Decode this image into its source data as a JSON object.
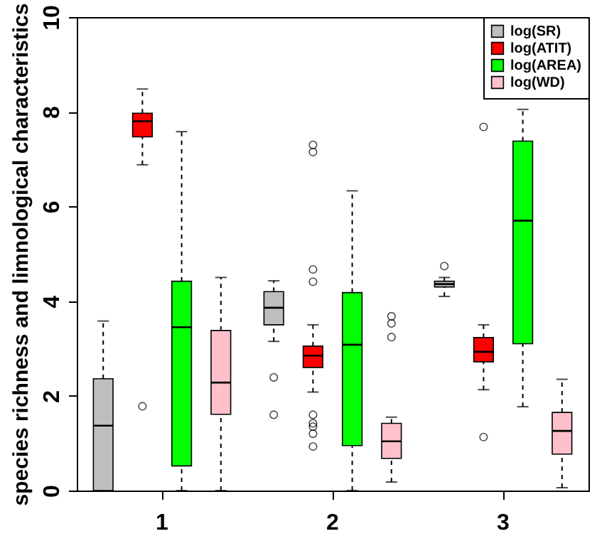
{
  "chart_data": {
    "type": "box",
    "ylabel": "species richness and limnological characteristics",
    "categories": [
      "1",
      "2",
      "3"
    ],
    "ylim": [
      0,
      10
    ],
    "yticks": [
      0,
      2,
      4,
      6,
      8,
      10
    ],
    "grid": false,
    "legend": "top right",
    "series": [
      {
        "name": "log(SR)",
        "color": "#bebebe",
        "boxes": [
          {
            "low": 0,
            "q1": 0,
            "median": 1.37,
            "q3": 2.36,
            "high": 3.58
          },
          {
            "low": 3.15,
            "q1": 3.5,
            "median": 3.86,
            "q3": 4.2,
            "high": 4.43,
            "outliers": [
              2.39,
              1.6
            ]
          },
          {
            "low": 4.1,
            "q1": 4.3,
            "median": 4.36,
            "q3": 4.42,
            "high": 4.5,
            "outliers": [
              4.74
            ]
          }
        ]
      },
      {
        "name": "log(ATIT)",
        "color": "#ff0000",
        "boxes": [
          {
            "low": 6.88,
            "q1": 7.47,
            "median": 7.8,
            "q3": 7.97,
            "high": 8.48,
            "outliers": [
              1.78
            ]
          },
          {
            "low": 2.08,
            "q1": 2.6,
            "median": 2.85,
            "q3": 3.05,
            "high": 3.5,
            "outliers": [
              7.3,
              7.15,
              4.67,
              4.41,
              1.6,
              1.42,
              1.35,
              1.2,
              0.93
            ]
          },
          {
            "low": 2.13,
            "q1": 2.72,
            "median": 2.93,
            "q3": 3.23,
            "high": 3.5,
            "outliers": [
              7.68,
              1.13
            ]
          }
        ]
      },
      {
        "name": "log(AREA)",
        "color": "#00ff00",
        "boxes": [
          {
            "low": 0,
            "q1": 0.52,
            "median": 3.45,
            "q3": 4.42,
            "high": 7.58
          },
          {
            "low": 0,
            "q1": 0.95,
            "median": 3.08,
            "q3": 4.18,
            "high": 6.33
          },
          {
            "low": 1.77,
            "q1": 3.1,
            "median": 5.7,
            "q3": 7.38,
            "high": 8.05
          }
        ]
      },
      {
        "name": "log(WD)",
        "color": "#ffc0cb",
        "boxes": [
          {
            "low": 0,
            "q1": 1.61,
            "median": 2.28,
            "q3": 3.38,
            "high": 4.5
          },
          {
            "low": 0.18,
            "q1": 0.68,
            "median": 1.04,
            "q3": 1.42,
            "high": 1.55,
            "outliers": [
              3.68,
              3.53,
              3.24
            ]
          },
          {
            "low": 0.06,
            "q1": 0.77,
            "median": 1.26,
            "q3": 1.65,
            "high": 2.35
          }
        ]
      }
    ]
  }
}
